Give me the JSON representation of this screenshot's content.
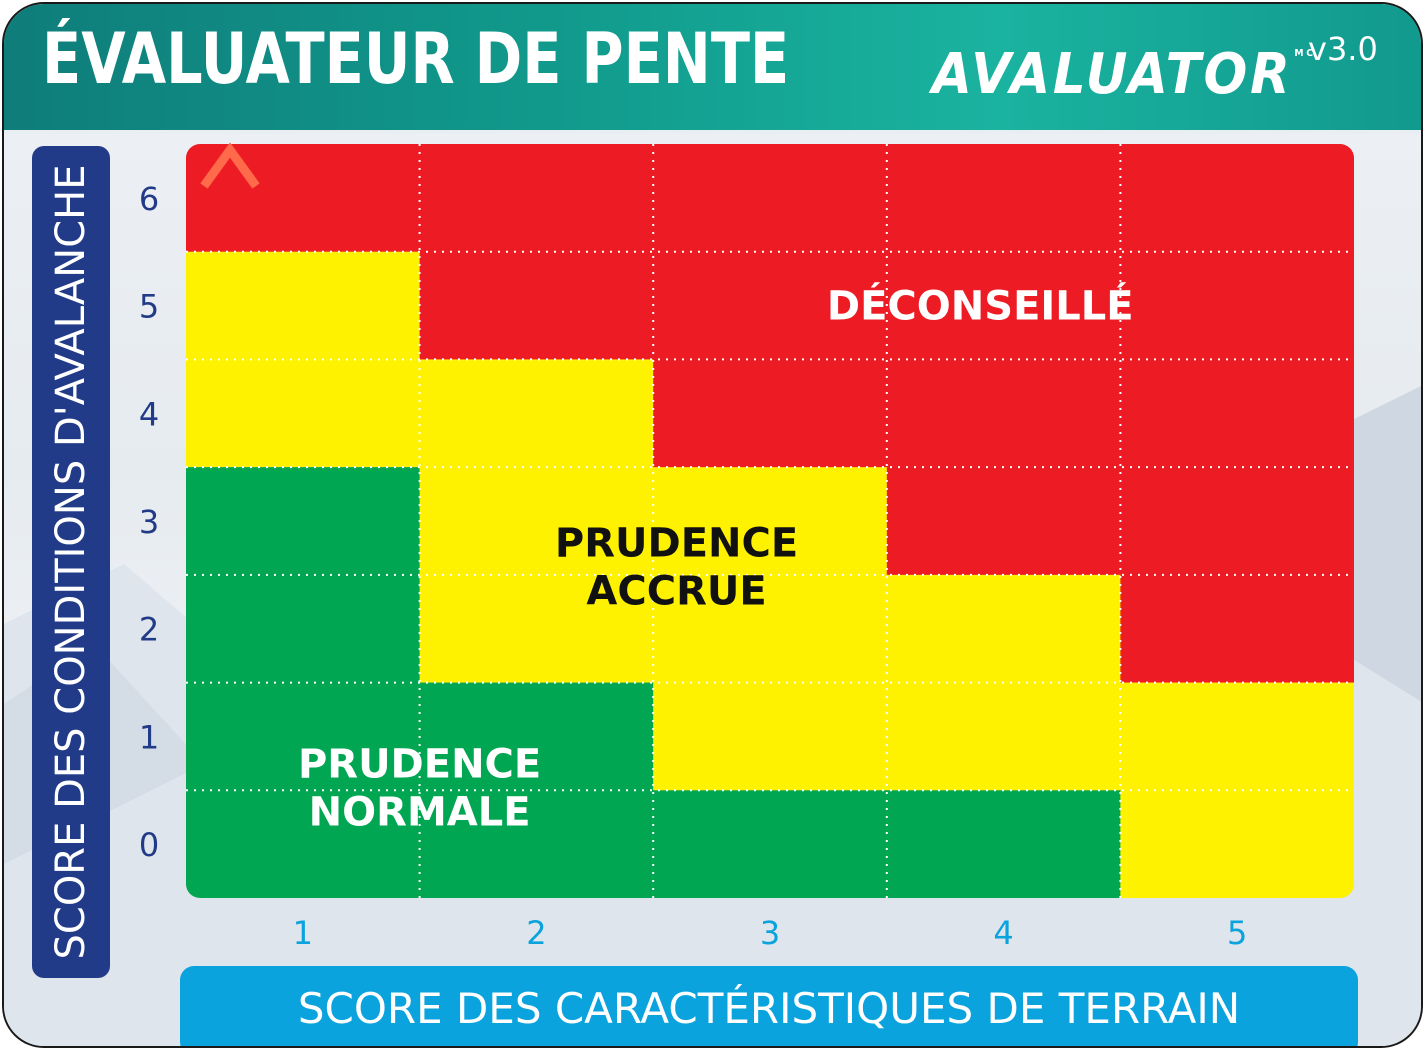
{
  "header": {
    "title": "ÉVALUATEUR DE PENTE",
    "logo": "AVALUATOR",
    "logo_mark": "MC",
    "version": "v3.0"
  },
  "colors": {
    "header_teal": "#119b8d",
    "ylabel_blue": "#223b88",
    "xlabel_cyan": "#0aa3dd",
    "red": "#ed1c24",
    "yellow": "#fff200",
    "green": "#00a651"
  },
  "chart_data": {
    "type": "heatmap",
    "xlabel": "SCORE DES CARACTÉRISTIQUES DE TERRAIN",
    "ylabel": "SCORE DES CONDITIONS D'AVALANCHE",
    "x_ticks": [
      "1",
      "2",
      "3",
      "4",
      "5"
    ],
    "y_ticks": [
      "0",
      "1",
      "2",
      "3",
      "4",
      "5",
      "6"
    ],
    "grid": "dotted",
    "zone_colors": {
      "normal": "#00a651",
      "accrue": "#fff200",
      "deconseille": "#ed1c24"
    },
    "cells_by_row_from_top": [
      [
        "deconseille",
        "deconseille",
        "deconseille",
        "deconseille",
        "deconseille"
      ],
      [
        "accrue",
        "deconseille",
        "deconseille",
        "deconseille",
        "deconseille"
      ],
      [
        "accrue",
        "accrue",
        "deconseille",
        "deconseille",
        "deconseille"
      ],
      [
        "normal",
        "accrue",
        "accrue",
        "deconseille",
        "deconseille"
      ],
      [
        "normal",
        "accrue",
        "accrue",
        "accrue",
        "deconseille"
      ],
      [
        "normal",
        "normal",
        "accrue",
        "accrue",
        "accrue"
      ],
      [
        "normal",
        "normal",
        "normal",
        "normal",
        "accrue"
      ]
    ],
    "zones": [
      {
        "key": "deconseille",
        "label": "DÉCONSEILLÉ",
        "text_color": "#ffffff"
      },
      {
        "key": "accrue",
        "label_lines": [
          "PRUDENCE",
          "ACCRUE"
        ],
        "text_color": "#111111"
      },
      {
        "key": "normal",
        "label_lines": [
          "PRUDENCE",
          "NORMALE"
        ],
        "text_color": "#ffffff"
      }
    ]
  }
}
